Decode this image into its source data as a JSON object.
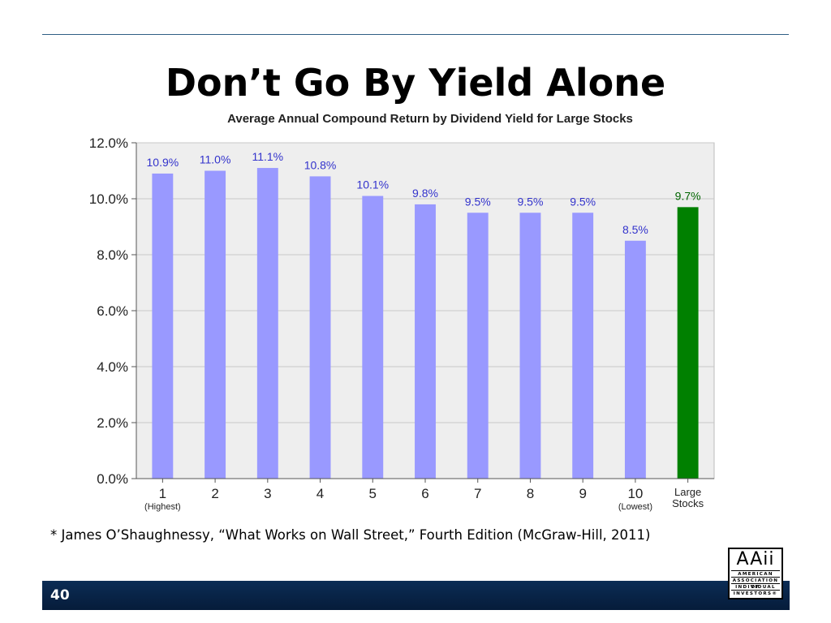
{
  "slide": {
    "title": "Don’t Go By Yield Alone",
    "footnote": "* James O’Shaughnessy, “What Works on Wall Street,” Fourth Edition (McGraw-Hill, 2011)",
    "page_number": "40",
    "logo": {
      "mark": "AAii",
      "lines": [
        "AMERICAN",
        "ASSOCIATION OF",
        "INDIVIDUAL",
        "INVESTORS®"
      ]
    }
  },
  "colors": {
    "bar": "#9999ff",
    "bar_highlight": "#008000",
    "label": "#3333cc",
    "label_highlight": "#006400",
    "plot_bg": "#eeeeee",
    "footer": "#0b2c55"
  },
  "chart_data": {
    "type": "bar",
    "title": "Average Annual Compound Return by Dividend Yield for Large Stocks",
    "categories": [
      "1",
      "2",
      "3",
      "4",
      "5",
      "6",
      "7",
      "8",
      "9",
      "10",
      "Large Stocks"
    ],
    "category_sublabels": [
      "(Highest)",
      "",
      "",
      "",
      "",
      "",
      "",
      "",
      "",
      "(Lowest)",
      ""
    ],
    "values": [
      10.9,
      11.0,
      11.1,
      10.8,
      10.1,
      9.8,
      9.5,
      9.5,
      9.5,
      8.5,
      9.7
    ],
    "data_labels": [
      "10.9%",
      "11.0%",
      "11.1%",
      "10.8%",
      "10.1%",
      "9.8%",
      "9.5%",
      "9.5%",
      "9.5%",
      "8.5%",
      "9.7%"
    ],
    "highlight_index": 10,
    "yticks": [
      "0.0%",
      "2.0%",
      "4.0%",
      "6.0%",
      "8.0%",
      "10.0%",
      "12.0%"
    ],
    "ylim": [
      0,
      12
    ],
    "xlabel": "",
    "ylabel": "",
    "grid": true
  }
}
